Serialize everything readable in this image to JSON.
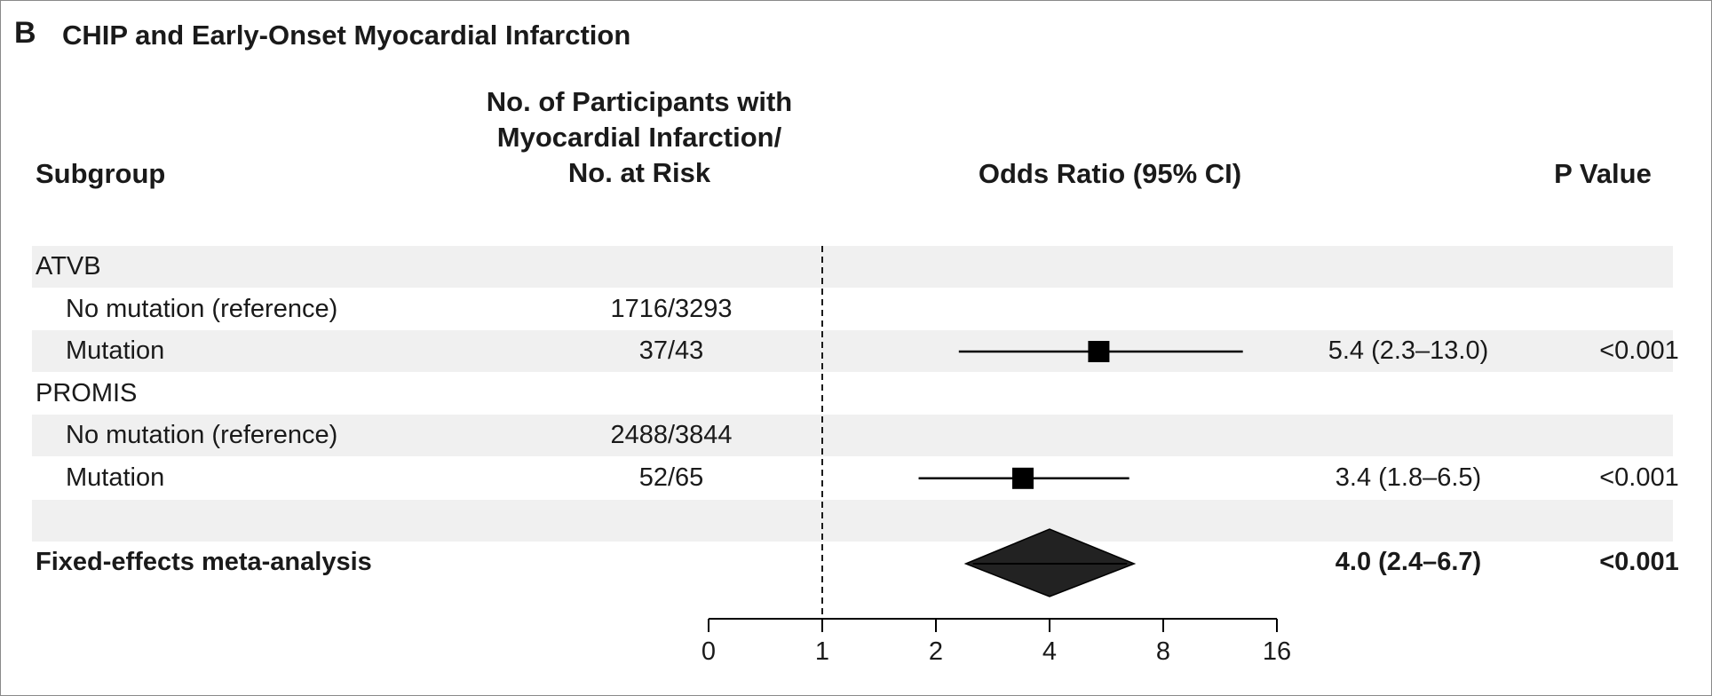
{
  "figure": {
    "panel_letter": "B",
    "title": "CHIP and Early-Onset Myocardial Infarction"
  },
  "headers": {
    "subgroup": "Subgroup",
    "count_line1": "No. of Participants with",
    "count_line2": "Myocardial Infarction/",
    "count_line3": "No. at Risk",
    "odds_ratio": "Odds Ratio (95% CI)",
    "p_value": "P Value"
  },
  "chart_data": {
    "type": "forest",
    "x_scale": "log2",
    "xlim": [
      0,
      16
    ],
    "x_ticks": [
      "0",
      "1",
      "2",
      "4",
      "8",
      "16"
    ],
    "reference_line": 1,
    "rows": [
      {
        "label": "ATVB",
        "kind": "group",
        "count": "",
        "or_text": "",
        "p": ""
      },
      {
        "label": "No mutation (reference)",
        "kind": "item",
        "count": "1716/3293",
        "or_text": "",
        "p": ""
      },
      {
        "label": "Mutation",
        "kind": "item",
        "count": "37/43",
        "or_text": "5.4 (2.3–13.0)",
        "p": "<0.001",
        "or": 5.4,
        "ci": [
          2.3,
          13.0
        ]
      },
      {
        "label": "PROMIS",
        "kind": "group",
        "count": "",
        "or_text": "",
        "p": ""
      },
      {
        "label": "No mutation (reference)",
        "kind": "item",
        "count": "2488/3844",
        "or_text": "",
        "p": ""
      },
      {
        "label": "Mutation",
        "kind": "item",
        "count": "52/65",
        "or_text": "3.4 (1.8–6.5)",
        "p": "<0.001",
        "or": 3.4,
        "ci": [
          1.8,
          6.5
        ]
      },
      {
        "label": "",
        "kind": "blank",
        "count": "",
        "or_text": "",
        "p": ""
      },
      {
        "label": "Fixed-effects meta-analysis",
        "kind": "summary",
        "count": "",
        "or_text": "4.0 (2.4–6.7)",
        "p": "<0.001",
        "or": 4.0,
        "ci": [
          2.4,
          6.7
        ]
      }
    ]
  }
}
